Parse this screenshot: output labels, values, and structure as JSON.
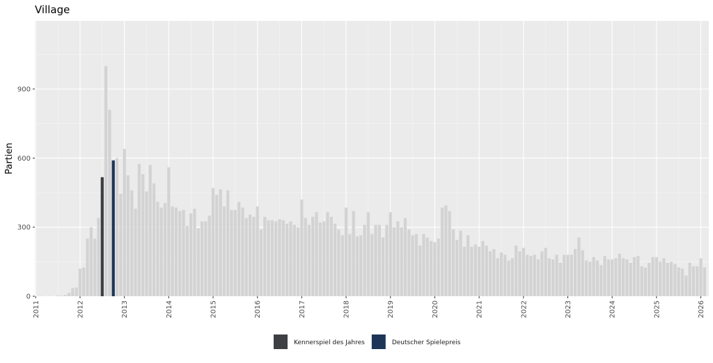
{
  "chart_data": {
    "type": "bar",
    "title": "Village",
    "y_label": "Partien",
    "color": "#d3d3d3",
    "x": [
      2011,
      2011.083,
      2011.167,
      2011.25,
      2011.333,
      2011.417,
      2011.5,
      2011.583,
      2011.667,
      2011.75,
      2011.833,
      2011.917,
      2012,
      2012.083,
      2012.167,
      2012.25,
      2012.333,
      2012.417,
      2012.5,
      2012.583,
      2012.667,
      2012.75,
      2012.833,
      2012.917,
      2013,
      2013.083,
      2013.167,
      2013.25,
      2013.333,
      2013.417,
      2013.5,
      2013.583,
      2013.667,
      2013.75,
      2013.833,
      2013.917,
      2014,
      2014.083,
      2014.167,
      2014.25,
      2014.333,
      2014.417,
      2014.5,
      2014.583,
      2014.667,
      2014.75,
      2014.833,
      2014.917,
      2015,
      2015.083,
      2015.167,
      2015.25,
      2015.333,
      2015.417,
      2015.5,
      2015.583,
      2015.667,
      2015.75,
      2015.833,
      2015.917,
      2016,
      2016.083,
      2016.167,
      2016.25,
      2016.333,
      2016.417,
      2016.5,
      2016.583,
      2016.667,
      2016.75,
      2016.833,
      2016.917,
      2017,
      2017.083,
      2017.167,
      2017.25,
      2017.333,
      2017.417,
      2017.5,
      2017.583,
      2017.667,
      2017.75,
      2017.833,
      2017.917,
      2018,
      2018.083,
      2018.167,
      2018.25,
      2018.333,
      2018.417,
      2018.5,
      2018.583,
      2018.667,
      2018.75,
      2018.833,
      2018.917,
      2019,
      2019.083,
      2019.167,
      2019.25,
      2019.333,
      2019.417,
      2019.5,
      2019.583,
      2019.667,
      2019.75,
      2019.833,
      2019.917,
      2020,
      2020.083,
      2020.167,
      2020.25,
      2020.333,
      2020.417,
      2020.5,
      2020.583,
      2020.667,
      2020.75,
      2020.833,
      2020.917,
      2021,
      2021.083,
      2021.167,
      2021.25,
      2021.333,
      2021.417,
      2021.5,
      2021.583,
      2021.667,
      2021.75,
      2021.833,
      2021.917,
      2022,
      2022.083,
      2022.167,
      2022.25,
      2022.333,
      2022.417,
      2022.5,
      2022.583,
      2022.667,
      2022.75,
      2022.833,
      2022.917,
      2023,
      2023.083,
      2023.167,
      2023.25,
      2023.333,
      2023.417,
      2023.5,
      2023.583,
      2023.667,
      2023.75,
      2023.833,
      2023.917,
      2024,
      2024.083,
      2024.167,
      2024.25,
      2024.333,
      2024.417,
      2024.5,
      2024.583,
      2024.667,
      2024.75,
      2024.833,
      2024.917,
      2025,
      2025.083,
      2025.167,
      2025.25,
      2025.333,
      2025.417,
      2025.5,
      2025.583,
      2025.667,
      2025.75,
      2025.833,
      2025.917,
      2026,
      2026.083
    ],
    "values": [
      0,
      1,
      1,
      0,
      1,
      0,
      3,
      2,
      5,
      15,
      35,
      38,
      120,
      125,
      250,
      300,
      250,
      340,
      null,
      1000,
      810,
      null,
      600,
      445,
      640,
      525,
      460,
      380,
      575,
      530,
      455,
      570,
      490,
      410,
      385,
      405,
      560,
      390,
      385,
      370,
      375,
      305,
      360,
      380,
      295,
      325,
      325,
      350,
      470,
      440,
      465,
      390,
      460,
      375,
      375,
      410,
      385,
      340,
      355,
      345,
      390,
      290,
      345,
      330,
      330,
      325,
      335,
      330,
      315,
      325,
      310,
      300,
      420,
      340,
      310,
      345,
      365,
      320,
      325,
      365,
      345,
      315,
      290,
      265,
      385,
      270,
      370,
      260,
      265,
      310,
      365,
      270,
      310,
      310,
      255,
      310,
      365,
      300,
      325,
      300,
      340,
      290,
      265,
      270,
      220,
      270,
      255,
      240,
      235,
      250,
      385,
      395,
      370,
      290,
      245,
      285,
      215,
      265,
      215,
      225,
      215,
      240,
      220,
      195,
      205,
      165,
      190,
      180,
      155,
      165,
      220,
      195,
      210,
      180,
      175,
      180,
      160,
      195,
      210,
      165,
      160,
      180,
      145,
      180,
      180,
      180,
      205,
      255,
      200,
      155,
      150,
      170,
      155,
      135,
      175,
      160,
      160,
      165,
      185,
      165,
      160,
      145,
      170,
      175,
      130,
      125,
      145,
      170,
      170,
      150,
      165,
      145,
      150,
      140,
      125,
      120,
      90,
      145,
      130,
      130,
      165,
      125
    ],
    "series": [
      {
        "name": "Kennerspiel des Jahres",
        "color": "#3d3f42",
        "x": [
          2012.5
        ],
        "values": [
          517
        ]
      },
      {
        "name": "Deutscher Spielepreis",
        "color": "#1d3557",
        "x": [
          2012.75
        ],
        "values": [
          590
        ]
      }
    ],
    "xlim": [
      2010.98,
      2026.18
    ],
    "xticks": [
      2011,
      2012,
      2013,
      2014,
      2015,
      2016,
      2017,
      2018,
      2019,
      2020,
      2021,
      2022,
      2023,
      2024,
      2025,
      2026
    ],
    "ylim": [
      0,
      1196
    ],
    "yticks": [
      0,
      300,
      600,
      900
    ],
    "grid": true,
    "legend": "bottom"
  }
}
